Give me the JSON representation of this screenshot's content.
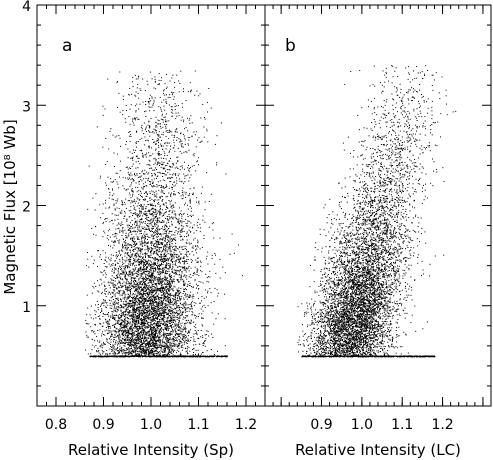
{
  "chart_data": [
    {
      "type": "scatter",
      "panel_label": "a",
      "xlabel": "Relative Intensity (Sp)",
      "ylabel": "Magnetic Flux [10⁸ Wb]",
      "xlim": [
        0.76,
        1.24
      ],
      "ylim": [
        0,
        4
      ],
      "x_ticks": [
        0.8,
        0.9,
        1.0,
        1.1,
        1.2
      ],
      "x_tick_labels": [
        "0.8",
        "0.9",
        "1.0",
        "1.1",
        "1.2"
      ],
      "y_ticks": [
        1,
        2,
        3,
        4
      ],
      "y_tick_labels": [
        "1",
        "2",
        "3",
        "4"
      ],
      "y_tick_labels_shown": true,
      "grid": false,
      "distribution": {
        "flux_floor": 0.5,
        "x_floor_range": [
          0.87,
          1.16
        ],
        "x_peak_low_flux": 0.99,
        "x_peak_high_flux": 1.02,
        "flux_max": 3.35
      }
    },
    {
      "type": "scatter",
      "panel_label": "b",
      "xlabel": "Relative Intensity (LC)",
      "ylabel": "",
      "xlim": [
        0.76,
        1.32
      ],
      "ylim": [
        0,
        4
      ],
      "x_ticks": [
        0.8,
        0.9,
        1.0,
        1.1,
        1.2,
        1.3
      ],
      "x_tick_labels": [
        "",
        "0.9",
        "1.0",
        "1.1",
        "1.2",
        ""
      ],
      "y_ticks": [
        1,
        2,
        3,
        4
      ],
      "y_tick_labels": [
        "",
        "",
        "",
        ""
      ],
      "y_tick_labels_shown": false,
      "grid": false,
      "distribution": {
        "flux_floor": 0.5,
        "x_floor_range": [
          0.85,
          1.18
        ],
        "x_peak_low_flux": 0.96,
        "x_peak_high_flux": 1.12,
        "flux_max": 3.4
      }
    }
  ]
}
